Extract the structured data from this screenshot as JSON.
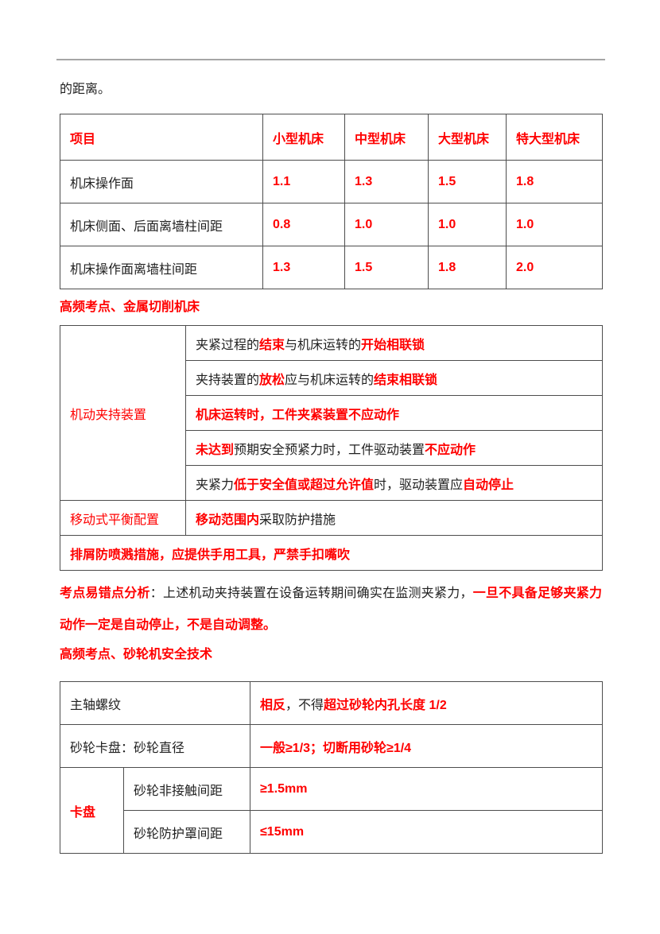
{
  "colors": {
    "accent_red": "#ff0000",
    "text_black": "#1f1f1f",
    "table_border": "#4d4d4d",
    "divider_gray": "#a6a6a6"
  },
  "intro": "的距离。",
  "headings": {
    "metal_cutting": "高频考点、金属切削机床",
    "grinder_safety": "高频考点、砂轮机安全技术"
  },
  "table1": {
    "headers": [
      "项目",
      "小型机床",
      "中型机床",
      "大型机床",
      "特大型机床"
    ],
    "rows": [
      {
        "label": "机床操作面",
        "values": [
          "1.1",
          "1.3",
          "1.5",
          "1.8"
        ]
      },
      {
        "label": "机床侧面、后面离墙柱间距",
        "values": [
          "0.8",
          "1.0",
          "1.0",
          "1.0"
        ]
      },
      {
        "label": "机床操作面离墙柱间距",
        "values": [
          "1.3",
          "1.5",
          "1.8",
          "2.0"
        ]
      }
    ]
  },
  "table2": {
    "group_label": "机动夹持装置",
    "group_rows": [
      [
        {
          "t": "夹紧过程的"
        },
        {
          "t": "结束",
          "c": "em"
        },
        {
          "t": "与机床运转的"
        },
        {
          "t": "开始相联锁",
          "c": "em"
        }
      ],
      [
        {
          "t": "夹持装置的"
        },
        {
          "t": "放松",
          "c": "em"
        },
        {
          "t": "应与机床运转的"
        },
        {
          "t": "结束相联锁",
          "c": "em"
        }
      ],
      [
        {
          "t": "机床运转时，工件夹紧装置不应动作",
          "c": "em"
        }
      ],
      [
        {
          "t": "未达到",
          "c": "em"
        },
        {
          "t": "预期安全预紧力时，工件驱动装置"
        },
        {
          "t": "不应动作",
          "c": "em"
        }
      ],
      [
        {
          "t": "夹紧力"
        },
        {
          "t": "低于安全值或超过允许值",
          "c": "em"
        },
        {
          "t": "时，驱动装置应"
        },
        {
          "t": "自动停止",
          "c": "em"
        }
      ]
    ],
    "balance_label": "移动式平衡配置",
    "balance_content": [
      {
        "t": "移动范围内",
        "c": "em"
      },
      {
        "t": "采取防护措施"
      }
    ],
    "chip_row": [
      {
        "t": "排屑防喷溅措施，应提供手用工具，严禁手扣嘴吹",
        "c": "em"
      }
    ]
  },
  "analysis": [
    {
      "t": "考点易错点分析",
      "c": "em"
    },
    {
      "t": "：上述机动夹持装置在设备运转期间确实在监测夹紧力，"
    },
    {
      "t": "一旦不具备足够夹紧力动作一定是自动停止，不是自动调整。",
      "c": "em"
    }
  ],
  "table3": {
    "rows_top": [
      {
        "label": "主轴螺纹",
        "content": [
          {
            "t": "相反",
            "c": "em"
          },
          {
            "t": "，不得"
          },
          {
            "t": "超过砂轮内孔长度 1/2",
            "c": "em"
          }
        ]
      },
      {
        "label": "砂轮卡盘：砂轮直径",
        "content": [
          {
            "t": "一般≥1/3；切断用砂轮≥1/4",
            "c": "em"
          }
        ]
      }
    ],
    "group_label": "卡盘",
    "group_rows": [
      {
        "label": "砂轮非接触间距",
        "content": [
          {
            "t": "≥1.5mm",
            "c": "em"
          }
        ]
      },
      {
        "label": "砂轮防护罩间距",
        "content": [
          {
            "t": "≤15mm",
            "c": "em"
          }
        ]
      }
    ]
  }
}
